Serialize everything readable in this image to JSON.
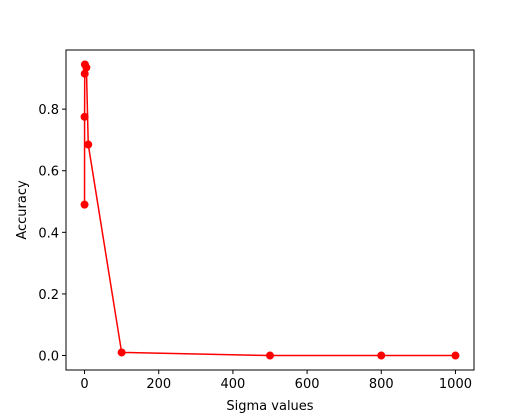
{
  "chart_data": {
    "type": "line",
    "xlabel": "Sigma values",
    "ylabel": "Accuracy",
    "x": [
      0.01,
      0.1,
      0.5,
      1,
      5,
      10,
      100,
      500,
      800,
      1000
    ],
    "series": [
      {
        "color": "#ff0000",
        "marker": "o",
        "values": [
          0.49,
          0.775,
          0.915,
          0.945,
          0.935,
          0.685,
          0.01,
          0.0,
          0.0,
          0.0
        ]
      }
    ],
    "xlim": [
      -50,
      1050
    ],
    "xticks": [
      0,
      200,
      400,
      600,
      800,
      1000
    ],
    "ylim": [
      -0.047,
      0.992
    ],
    "yticks": [
      {
        "value": 0.0,
        "label": "0.0"
      },
      {
        "value": 0.2,
        "label": "0.2"
      },
      {
        "value": 0.4,
        "label": "0.4"
      },
      {
        "value": 0.6,
        "label": "0.6"
      },
      {
        "value": 0.8,
        "label": "0.8"
      }
    ],
    "grid": false
  }
}
